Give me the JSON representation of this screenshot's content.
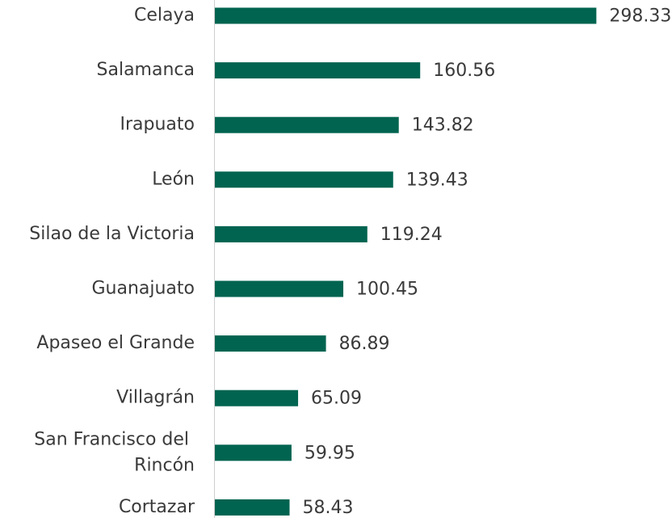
{
  "chart_data": {
    "type": "hbar",
    "categories": [
      "Celaya",
      "Salamanca",
      "Irapuato",
      "León",
      "Silao de la Victoria",
      "Guanajuato",
      "Apaseo el Grande",
      "Villagrán",
      "San Francisco del Rincón",
      "Cortazar"
    ],
    "values": [
      298.33,
      160.56,
      143.82,
      139.43,
      119.24,
      100.45,
      86.89,
      65.09,
      59.95,
      58.43
    ],
    "color": "#006450",
    "xlim": [
      0,
      300
    ]
  }
}
